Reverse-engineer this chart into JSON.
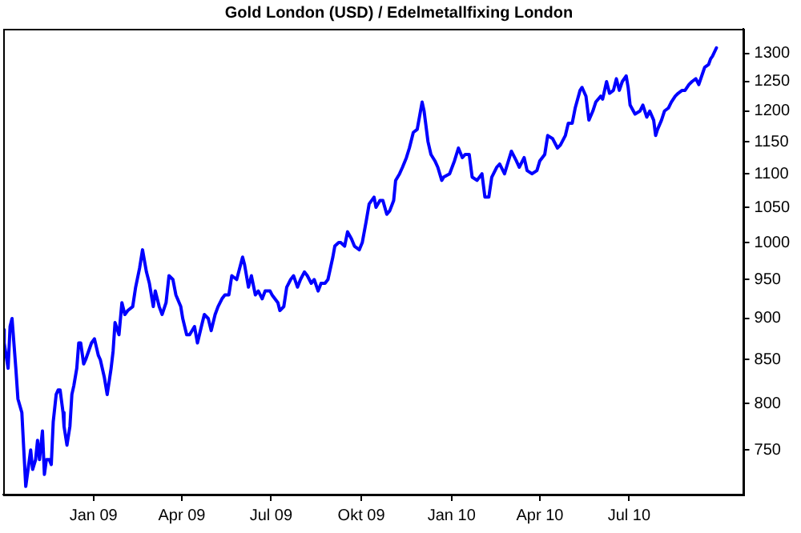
{
  "chart_data": {
    "type": "line",
    "title": "Gold London (USD) / Edelmetallfixing London",
    "log": "y",
    "grid": false,
    "legend": false,
    "marker": "none",
    "line_style": "solid",
    "xlim": [
      "2008-10-01",
      "2010-10-25"
    ],
    "xticks": [
      {
        "value": "2009-01-01",
        "label": "Jan 09"
      },
      {
        "value": "2009-04-01",
        "label": "Apr 09"
      },
      {
        "value": "2009-07-01",
        "label": "Jul 09"
      },
      {
        "value": "2009-10-01",
        "label": "Okt 09"
      },
      {
        "value": "2010-01-01",
        "label": "Jan 10"
      },
      {
        "value": "2010-04-01",
        "label": "Apr 10"
      },
      {
        "value": "2010-07-01",
        "label": "Jul 10"
      }
    ],
    "ylim": [
      705,
      1345
    ],
    "yticks": [
      750,
      800,
      850,
      900,
      950,
      1000,
      1050,
      1100,
      1150,
      1200,
      1250,
      1300
    ],
    "series": [
      {
        "color": "#0000ff",
        "x": [
          "2008-10-01",
          "2008-10-02",
          "2008-10-06",
          "2008-10-08",
          "2008-10-10",
          "2008-10-14",
          "2008-10-16",
          "2008-10-20",
          "2008-10-22",
          "2008-10-24",
          "2008-10-27",
          "2008-10-29",
          "2008-10-31",
          "2008-11-03",
          "2008-11-05",
          "2008-11-07",
          "2008-11-10",
          "2008-11-12",
          "2008-11-14",
          "2008-11-17",
          "2008-11-19",
          "2008-11-21",
          "2008-11-24",
          "2008-11-26",
          "2008-11-28",
          "2008-12-01",
          "2008-12-02",
          "2008-12-05",
          "2008-12-08",
          "2008-12-10",
          "2008-12-12",
          "2008-12-15",
          "2008-12-17",
          "2008-12-19",
          "2008-12-22",
          "2008-12-24",
          "2008-12-30",
          "2009-01-02",
          "2009-01-06",
          "2009-01-08",
          "2009-01-12",
          "2009-01-15",
          "2009-01-19",
          "2009-01-21",
          "2009-01-23",
          "2009-01-27",
          "2009-01-30",
          "2009-02-02",
          "2009-02-05",
          "2009-02-10",
          "2009-02-13",
          "2009-02-17",
          "2009-02-20",
          "2009-02-24",
          "2009-02-27",
          "2009-03-03",
          "2009-03-05",
          "2009-03-09",
          "2009-03-12",
          "2009-03-16",
          "2009-03-19",
          "2009-03-23",
          "2009-03-26",
          "2009-03-31",
          "2009-04-02",
          "2009-04-06",
          "2009-04-09",
          "2009-04-14",
          "2009-04-17",
          "2009-04-21",
          "2009-04-24",
          "2009-04-28",
          "2009-05-01",
          "2009-05-05",
          "2009-05-08",
          "2009-05-12",
          "2009-05-15",
          "2009-05-19",
          "2009-05-22",
          "2009-05-27",
          "2009-06-02",
          "2009-06-04",
          "2009-06-08",
          "2009-06-11",
          "2009-06-15",
          "2009-06-18",
          "2009-06-22",
          "2009-06-25",
          "2009-06-30",
          "2009-07-02",
          "2009-07-08",
          "2009-07-10",
          "2009-07-14",
          "2009-07-17",
          "2009-07-21",
          "2009-07-24",
          "2009-07-28",
          "2009-07-31",
          "2009-08-04",
          "2009-08-07",
          "2009-08-11",
          "2009-08-14",
          "2009-08-18",
          "2009-08-21",
          "2009-08-25",
          "2009-08-28",
          "2009-09-02",
          "2009-09-04",
          "2009-09-08",
          "2009-09-10",
          "2009-09-14",
          "2009-09-17",
          "2009-09-21",
          "2009-09-24",
          "2009-09-29",
          "2009-10-02",
          "2009-10-06",
          "2009-10-09",
          "2009-10-14",
          "2009-10-16",
          "2009-10-20",
          "2009-10-23",
          "2009-10-27",
          "2009-10-30",
          "2009-11-03",
          "2009-11-05",
          "2009-11-09",
          "2009-11-12",
          "2009-11-16",
          "2009-11-19",
          "2009-11-23",
          "2009-11-27",
          "2009-12-02",
          "2009-12-04",
          "2009-12-08",
          "2009-12-11",
          "2009-12-15",
          "2009-12-18",
          "2009-12-22",
          "2009-12-24",
          "2009-12-30",
          "2010-01-04",
          "2010-01-08",
          "2010-01-12",
          "2010-01-15",
          "2010-01-19",
          "2010-01-22",
          "2010-01-27",
          "2010-02-01",
          "2010-02-04",
          "2010-02-08",
          "2010-02-11",
          "2010-02-16",
          "2010-02-19",
          "2010-02-24",
          "2010-02-26",
          "2010-03-03",
          "2010-03-08",
          "2010-03-11",
          "2010-03-16",
          "2010-03-19",
          "2010-03-24",
          "2010-03-29",
          "2010-04-01",
          "2010-04-06",
          "2010-04-09",
          "2010-04-14",
          "2010-04-19",
          "2010-04-22",
          "2010-04-27",
          "2010-04-30",
          "2010-05-04",
          "2010-05-07",
          "2010-05-12",
          "2010-05-14",
          "2010-05-18",
          "2010-05-21",
          "2010-05-25",
          "2010-05-28",
          "2010-06-02",
          "2010-06-04",
          "2010-06-08",
          "2010-06-11",
          "2010-06-15",
          "2010-06-18",
          "2010-06-21",
          "2010-06-24",
          "2010-06-28",
          "2010-06-30",
          "2010-07-02",
          "2010-07-07",
          "2010-07-12",
          "2010-07-15",
          "2010-07-19",
          "2010-07-22",
          "2010-07-26",
          "2010-07-28",
          "2010-07-30",
          "2010-08-03",
          "2010-08-06",
          "2010-08-10",
          "2010-08-13",
          "2010-08-17",
          "2010-08-20",
          "2010-08-24",
          "2010-08-27",
          "2010-08-31",
          "2010-09-03",
          "2010-09-07",
          "2010-09-10",
          "2010-09-14",
          "2010-09-16",
          "2010-09-20",
          "2010-09-22",
          "2010-09-24",
          "2010-09-28"
        ],
        "values": [
          886,
          870,
          840,
          890,
          900,
          838,
          805,
          790,
          750,
          713,
          735,
          750,
          730,
          740,
          760,
          740,
          770,
          725,
          740,
          740,
          735,
          780,
          810,
          815,
          815,
          790,
          775,
          755,
          775,
          810,
          820,
          840,
          870,
          870,
          845,
          850,
          870,
          875,
          855,
          850,
          830,
          810,
          840,
          860,
          895,
          880,
          920,
          905,
          910,
          915,
          940,
          965,
          990,
          960,
          945,
          915,
          935,
          915,
          905,
          920,
          955,
          950,
          930,
          915,
          900,
          880,
          880,
          890,
          870,
          890,
          905,
          900,
          885,
          905,
          915,
          925,
          930,
          930,
          955,
          950,
          980,
          970,
          940,
          955,
          930,
          935,
          925,
          935,
          935,
          930,
          920,
          910,
          915,
          940,
          950,
          955,
          940,
          950,
          960,
          955,
          945,
          950,
          935,
          945,
          945,
          950,
          980,
          995,
          1000,
          1000,
          995,
          1015,
          1005,
          995,
          990,
          1000,
          1030,
          1055,
          1065,
          1050,
          1060,
          1060,
          1040,
          1045,
          1060,
          1090,
          1100,
          1110,
          1125,
          1140,
          1165,
          1170,
          1215,
          1200,
          1150,
          1130,
          1120,
          1110,
          1090,
          1095,
          1100,
          1120,
          1140,
          1125,
          1130,
          1130,
          1095,
          1090,
          1100,
          1065,
          1065,
          1095,
          1110,
          1115,
          1100,
          1110,
          1135,
          1120,
          1110,
          1125,
          1105,
          1100,
          1105,
          1120,
          1130,
          1160,
          1155,
          1140,
          1145,
          1160,
          1180,
          1180,
          1205,
          1235,
          1240,
          1225,
          1185,
          1200,
          1215,
          1225,
          1220,
          1250,
          1230,
          1235,
          1255,
          1235,
          1250,
          1260,
          1240,
          1210,
          1195,
          1200,
          1210,
          1190,
          1200,
          1185,
          1160,
          1170,
          1185,
          1200,
          1205,
          1215,
          1225,
          1230,
          1235,
          1235,
          1245,
          1250,
          1255,
          1245,
          1265,
          1275,
          1280,
          1290,
          1295,
          1310
        ]
      }
    ]
  }
}
